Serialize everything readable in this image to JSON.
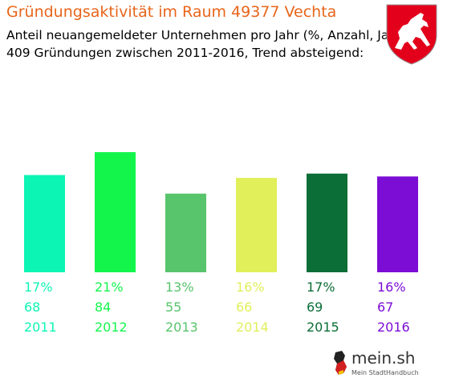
{
  "header": {
    "title": "Gründungsaktivität im Raum 49377 Vechta",
    "subtitle_line1": "Anteil neuangemeldeter Unternehmen pro Jahr (%, Anzahl, Jahr)",
    "subtitle_line2": "409 Gründungen zwischen 2011-2016, Trend absteigend:"
  },
  "footer": {
    "logo_name": "mein.sh",
    "logo_tagline": "Mein StadtHandbuch"
  },
  "chart_data": {
    "type": "bar",
    "categories": [
      "2011",
      "2012",
      "2013",
      "2014",
      "2015",
      "2016"
    ],
    "percent_labels": [
      "17%",
      "21%",
      "13%",
      "16%",
      "17%",
      "16%"
    ],
    "values": [
      68,
      84,
      55,
      66,
      69,
      67
    ],
    "colors": [
      "#0cf5b5",
      "#14f54c",
      "#58c46c",
      "#e1ef5a",
      "#0b6e37",
      "#7c0dd4"
    ],
    "grid": false,
    "legend": "none"
  }
}
